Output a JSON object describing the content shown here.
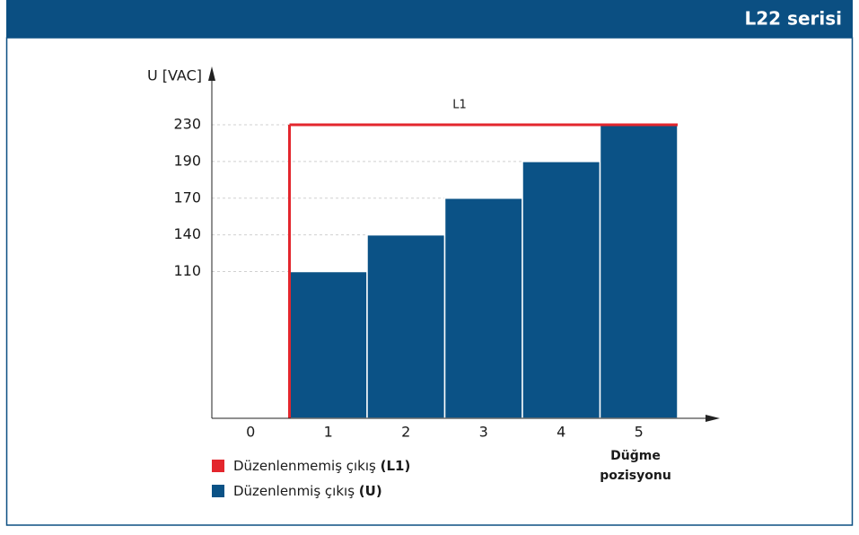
{
  "header": {
    "title": "L22 serisi"
  },
  "chart_data": {
    "type": "bar",
    "ylabel": "U [VAC]",
    "xlabel": [
      "Düğme",
      "pozisyonu"
    ],
    "annotation": "L1",
    "categories": [
      "0",
      "1",
      "2",
      "3",
      "4",
      "5"
    ],
    "ylim": [
      0,
      230
    ],
    "yticks": [
      110,
      140,
      170,
      190,
      230
    ],
    "grid": true,
    "series": [
      {
        "name": "Düzenlenmemiş çıkış",
        "symbol": "(L1)",
        "color": "#e3262d",
        "style": "line",
        "values": [
          null,
          230,
          230,
          230,
          230,
          230
        ]
      },
      {
        "name": "Düzenlenmiş çıkış",
        "symbol": "(U)",
        "color": "#0b5286",
        "style": "bar",
        "values": [
          null,
          110,
          140,
          170,
          190,
          230
        ]
      }
    ]
  }
}
